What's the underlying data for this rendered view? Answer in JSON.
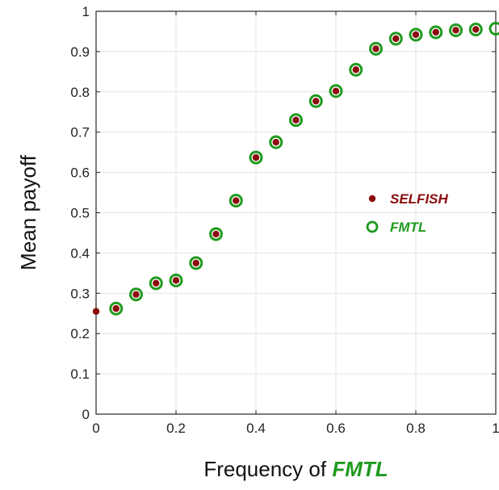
{
  "chart_data": {
    "type": "scatter",
    "xlabel_prefix": "Frequency of ",
    "xlabel_emphasis": "FMTL",
    "ylabel": "Mean payoff",
    "xlim": [
      0,
      1
    ],
    "ylim": [
      0,
      1
    ],
    "xticks": [
      "0",
      "0.2",
      "0.4",
      "0.6",
      "0.8",
      "1"
    ],
    "yticks": [
      "0",
      "0.1",
      "0.2",
      "0.3",
      "0.4",
      "0.5",
      "0.6",
      "0.7",
      "0.8",
      "0.9",
      "1"
    ],
    "grid": true,
    "legend_position": "right-center",
    "series": [
      {
        "name": "SELFISH",
        "marker": "filled-circle",
        "color": "#8b0d0d",
        "x": [
          0,
          0.05,
          0.1,
          0.15,
          0.2,
          0.25,
          0.3,
          0.35,
          0.4,
          0.45,
          0.5,
          0.55,
          0.6,
          0.65,
          0.7,
          0.75,
          0.8,
          0.85,
          0.9,
          0.95
        ],
        "y": [
          0.255,
          0.262,
          0.297,
          0.325,
          0.332,
          0.375,
          0.447,
          0.53,
          0.637,
          0.675,
          0.73,
          0.777,
          0.802,
          0.855,
          0.907,
          0.932,
          0.942,
          0.948,
          0.953,
          0.955
        ]
      },
      {
        "name": "FMTL",
        "marker": "open-circle",
        "color": "#1f9a1f",
        "x": [
          0.05,
          0.1,
          0.15,
          0.2,
          0.25,
          0.3,
          0.35,
          0.4,
          0.45,
          0.5,
          0.55,
          0.6,
          0.65,
          0.7,
          0.75,
          0.8,
          0.85,
          0.9,
          0.95,
          1
        ],
        "y": [
          0.262,
          0.297,
          0.325,
          0.332,
          0.375,
          0.447,
          0.53,
          0.637,
          0.675,
          0.73,
          0.777,
          0.802,
          0.855,
          0.907,
          0.932,
          0.942,
          0.948,
          0.953,
          0.955,
          0.957
        ]
      }
    ]
  }
}
